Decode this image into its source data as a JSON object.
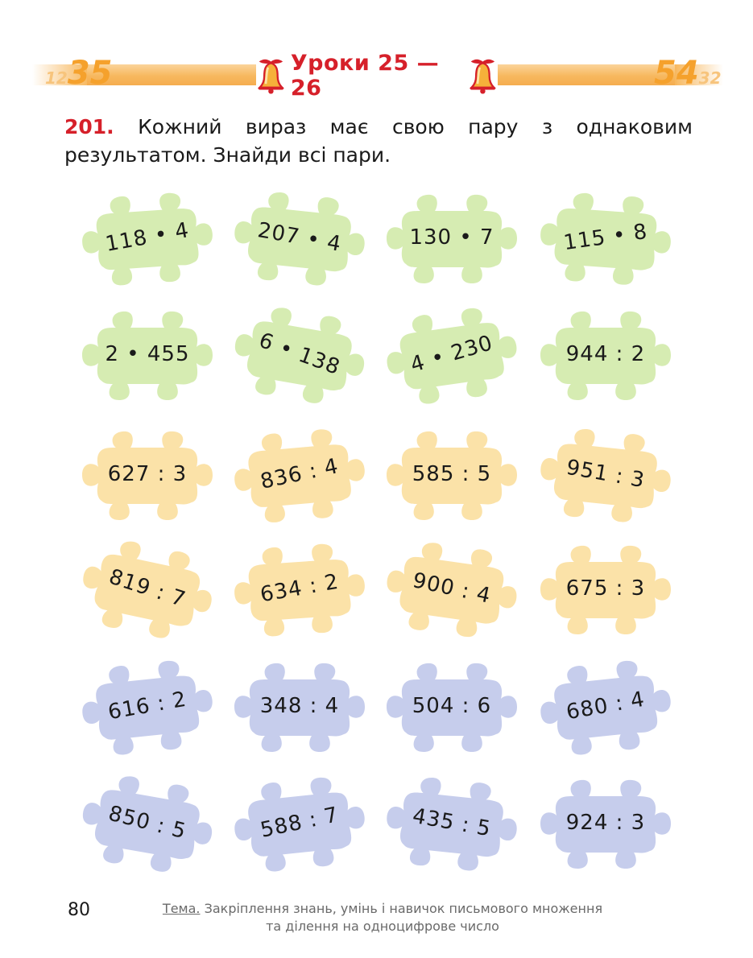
{
  "header": {
    "title": "Уроки 25 — 26",
    "deco_left_big": "35",
    "deco_left_small": "12",
    "deco_right_big": "54",
    "deco_right_small": "32"
  },
  "task": {
    "number": "201.",
    "text": "Кожний вираз має свою пару з однаковим результатом. Знайди всі пари."
  },
  "pieces": [
    [
      "118 • 4",
      "207 • 4",
      "130 • 7",
      "115 • 8"
    ],
    [
      "2 • 455",
      "6 • 138",
      "4 • 230",
      "944 : 2"
    ],
    [
      "627 : 3",
      "836 : 4",
      "585 : 5",
      "951 : 3"
    ],
    [
      "819 : 7",
      "634 : 2",
      "900 : 4",
      "675 : 3"
    ],
    [
      "616 : 2",
      "348 : 4",
      "504 : 6",
      "680 : 4"
    ],
    [
      "850 : 5",
      "588 : 7",
      "435 : 5",
      "924 : 3"
    ]
  ],
  "colors": {
    "green": "#d6ecb2",
    "yellow": "#fbe2a8",
    "blue": "#c6cdec",
    "accent": "#d6202a"
  },
  "footer": {
    "page_number": "80",
    "topic_label": "Тема.",
    "topic_line1": "Закріплення знань, умінь і навичок письмового множення",
    "topic_line2": "та ділення на одноцифрове число"
  }
}
